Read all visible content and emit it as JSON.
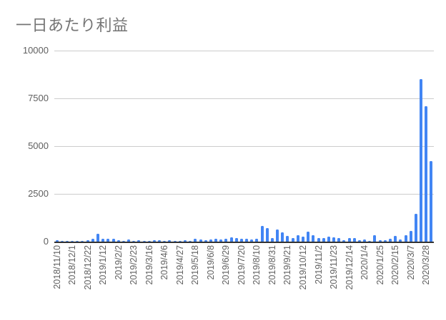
{
  "chart_data": {
    "type": "bar",
    "title": "一日あたり利益",
    "xlabel": "",
    "ylabel": "",
    "ylim": [
      0,
      10000
    ],
    "yticks": [
      0,
      2500,
      5000,
      7500,
      10000
    ],
    "grid": true,
    "legend": "none",
    "bar_color": "#4285f4",
    "x_tick_labels": [
      "2018/11/10",
      "2018/12/1",
      "2018/12/22",
      "2019/1/12",
      "2019/2/2",
      "2019/2/23",
      "2019/3/16",
      "2019/4/6",
      "2019/4/27",
      "2019/5/18",
      "2019/6/8",
      "2019/6/29",
      "2019/7/20",
      "2019/8/10",
      "2019/8/31",
      "2019/9/21",
      "2019/10/12",
      "2019/11/2",
      "2019/11/23",
      "2019/12/14",
      "2020/1/4",
      "2020/1/25",
      "2020/2/15",
      "2020/3/7",
      "2020/3/28"
    ],
    "categories_note": "weekly, starting 2018/11/10, 74 bars",
    "values": [
      120,
      90,
      90,
      90,
      90,
      90,
      110,
      200,
      450,
      170,
      180,
      170,
      130,
      90,
      160,
      90,
      120,
      60,
      90,
      100,
      110,
      80,
      100,
      90,
      90,
      120,
      60,
      170,
      160,
      130,
      140,
      200,
      150,
      190,
      260,
      220,
      190,
      170,
      150,
      170,
      850,
      750,
      220,
      680,
      510,
      350,
      220,
      380,
      280,
      550,
      360,
      220,
      240,
      280,
      270,
      240,
      130,
      240,
      240,
      120,
      160,
      30,
      380,
      130,
      130,
      190,
      340,
      160,
      390,
      590,
      1500,
      8500,
      7100,
      4250
    ]
  }
}
